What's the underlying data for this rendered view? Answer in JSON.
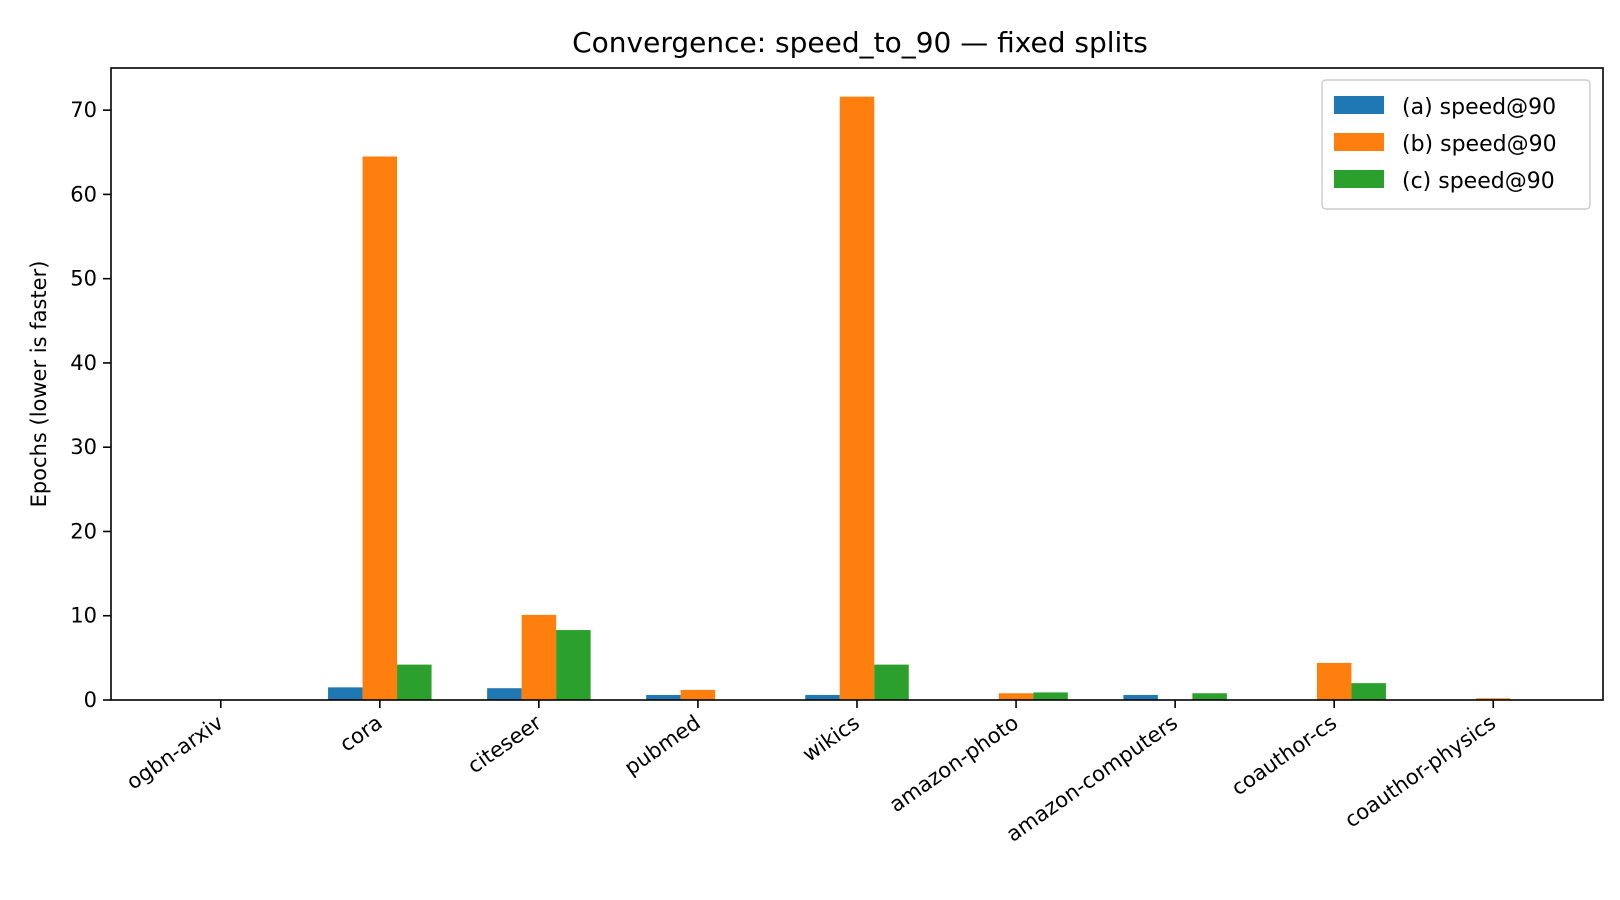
{
  "chart_data": {
    "type": "bar",
    "title": "Convergence: speed_to_90 — fixed splits",
    "xlabel": "",
    "ylabel": "Epochs (lower is faster)",
    "ylim": [
      0,
      75
    ],
    "yticks": [
      0,
      10,
      20,
      30,
      40,
      50,
      60,
      70
    ],
    "categories": [
      "ogbn-arxiv",
      "cora",
      "citeseer",
      "pubmed",
      "wikics",
      "amazon-photo",
      "amazon-computers",
      "coauthor-cs",
      "coauthor-physics"
    ],
    "series": [
      {
        "name": "(a) speed@90",
        "color": "#1f77b4",
        "values": [
          0,
          1.5,
          1.4,
          0.6,
          0.6,
          0,
          0.6,
          0,
          0
        ]
      },
      {
        "name": "(b) speed@90",
        "color": "#ff7f0e",
        "values": [
          0,
          64.5,
          10.1,
          1.2,
          71.6,
          0.8,
          0,
          4.4,
          0.2
        ]
      },
      {
        "name": "(c) speed@90",
        "color": "#2ca02c",
        "values": [
          0,
          4.2,
          8.3,
          0,
          4.2,
          0.9,
          0.8,
          2.0,
          0
        ]
      }
    ],
    "legend_position": "top-right",
    "grid": false
  }
}
